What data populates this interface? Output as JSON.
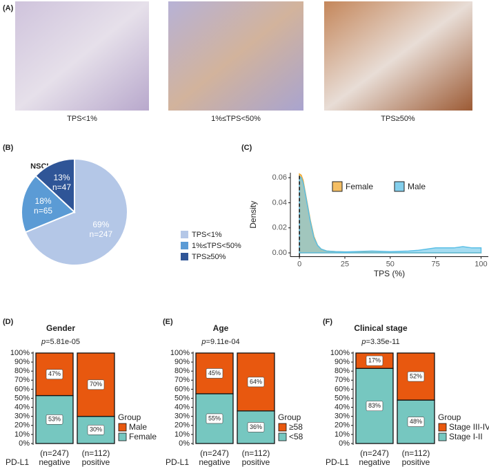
{
  "panel_labels": [
    "(A)",
    "(B)",
    "(C)",
    "(D)",
    "(E)",
    "(F)"
  ],
  "figure_a": {
    "captions": [
      "TPS<1%",
      "1%≤TPS<50%",
      "TPS≥50%"
    ]
  },
  "chart_data": [
    {
      "type": "pie",
      "title": "NSCLC AD patients",
      "categories": [
        "TPS<1%",
        "1%≤TPS<50%",
        "TPS≥50%"
      ],
      "values": [
        247,
        65,
        47
      ],
      "value_labels": [
        "n=247",
        "n=65",
        "n=47"
      ],
      "percent_labels": [
        "69%",
        "18%",
        "13%"
      ],
      "colors": [
        "#b4c7e7",
        "#5b9bd5",
        "#2f5597"
      ]
    },
    {
      "type": "density",
      "xlabel": "TPS (%)",
      "ylabel": "Density",
      "x": [
        0,
        1,
        2,
        3,
        4,
        5,
        6,
        8,
        10,
        12,
        15,
        20,
        25,
        30,
        40,
        50,
        60,
        65,
        70,
        75,
        80,
        85,
        90,
        95,
        100
      ],
      "series": [
        {
          "name": "Female",
          "color": "#f0a830",
          "values": [
            0.063,
            0.062,
            0.058,
            0.05,
            0.042,
            0.034,
            0.026,
            0.013,
            0.006,
            0.003,
            0.0015,
            0.001,
            0.0008,
            0.0006,
            0.0004,
            0.0002,
            0.0001,
            0.0001,
            0.0001,
            0.0001,
            0.0001,
            0.0001,
            0.0001,
            0.0001,
            0.0001
          ]
        },
        {
          "name": "Male",
          "color": "#5bbfe6",
          "values": [
            0.061,
            0.06,
            0.056,
            0.049,
            0.041,
            0.033,
            0.025,
            0.012,
            0.006,
            0.003,
            0.0015,
            0.001,
            0.0008,
            0.001,
            0.0015,
            0.001,
            0.0015,
            0.002,
            0.003,
            0.004,
            0.004,
            0.004,
            0.005,
            0.004,
            0.004
          ]
        }
      ],
      "vline": 0,
      "xlim": [
        -5,
        104
      ],
      "xticks": [
        0,
        25,
        50,
        75,
        100
      ],
      "ylim": [
        -0.003,
        0.064
      ],
      "yticks": [
        {
          "value": 0,
          "label": "0.00"
        },
        {
          "value": 0.02,
          "label": "0.02"
        },
        {
          "value": 0.04,
          "label": "0.04"
        },
        {
          "value": 0.06,
          "label": "0.06"
        }
      ]
    },
    {
      "type": "stacked_bar",
      "title": "Gender",
      "subtitle": "p=5.81e-05",
      "categories": [
        "(n=247)",
        "(n=112)"
      ],
      "category_sublabels": [
        "negative",
        "positive"
      ],
      "x_title": "PD-L1",
      "legend_title": "Group",
      "series": [
        {
          "name": "Female",
          "color": "#76c7c0",
          "values": [
            53,
            30
          ],
          "value_labels": [
            "53%",
            "30%"
          ]
        },
        {
          "name": "Male",
          "color": "#e8580f",
          "values": [
            47,
            70
          ],
          "value_labels": [
            "47%",
            "70%"
          ]
        }
      ],
      "ylim": [
        0,
        100
      ],
      "yticks": [
        {
          "value": 0,
          "label": "0%"
        },
        {
          "value": 10,
          "label": "10%"
        },
        {
          "value": 20,
          "label": "20%"
        },
        {
          "value": 30,
          "label": "30%"
        },
        {
          "value": 40,
          "label": "40%"
        },
        {
          "value": 50,
          "label": "50%"
        },
        {
          "value": 60,
          "label": "60%"
        },
        {
          "value": 70,
          "label": "70%"
        },
        {
          "value": 80,
          "label": "80%"
        },
        {
          "value": 90,
          "label": "90%"
        },
        {
          "value": 100,
          "label": "100%"
        }
      ]
    },
    {
      "type": "stacked_bar",
      "title": "Age",
      "subtitle": "p=9.11e-04",
      "categories": [
        "(n=247)",
        "(n=112)"
      ],
      "category_sublabels": [
        "negative",
        "positive"
      ],
      "x_title": "PD-L1",
      "legend_title": "Group",
      "series": [
        {
          "name": "<58",
          "color": "#76c7c0",
          "values": [
            55,
            36
          ],
          "value_labels": [
            "55%",
            "36%"
          ]
        },
        {
          "name": "≥58",
          "color": "#e8580f",
          "values": [
            45,
            64
          ],
          "value_labels": [
            "45%",
            "64%"
          ]
        }
      ],
      "ylim": [
        0,
        100
      ],
      "yticks": [
        {
          "value": 0,
          "label": "0%"
        },
        {
          "value": 10,
          "label": "10%"
        },
        {
          "value": 20,
          "label": "20%"
        },
        {
          "value": 30,
          "label": "30%"
        },
        {
          "value": 40,
          "label": "40%"
        },
        {
          "value": 50,
          "label": "50%"
        },
        {
          "value": 60,
          "label": "60%"
        },
        {
          "value": 70,
          "label": "70%"
        },
        {
          "value": 80,
          "label": "80%"
        },
        {
          "value": 90,
          "label": "90%"
        },
        {
          "value": 100,
          "label": "100%"
        }
      ]
    },
    {
      "type": "stacked_bar",
      "title": "Clinical stage",
      "subtitle": "p=3.35e-11",
      "categories": [
        "(n=247)",
        "(n=112)"
      ],
      "category_sublabels": [
        "negative",
        "positive"
      ],
      "x_title": "PD-L1",
      "legend_title": "Group",
      "series": [
        {
          "name": "Stage I-II",
          "color": "#76c7c0",
          "values": [
            83,
            48
          ],
          "value_labels": [
            "83%",
            "48%"
          ]
        },
        {
          "name": "Stage III-IV",
          "color": "#e8580f",
          "values": [
            17,
            52
          ],
          "value_labels": [
            "17%",
            "52%"
          ]
        }
      ],
      "ylim": [
        0,
        100
      ],
      "yticks": [
        {
          "value": 0,
          "label": "0%"
        },
        {
          "value": 10,
          "label": "10%"
        },
        {
          "value": 20,
          "label": "20%"
        },
        {
          "value": 30,
          "label": "30%"
        },
        {
          "value": 40,
          "label": "40%"
        },
        {
          "value": 50,
          "label": "50%"
        },
        {
          "value": 60,
          "label": "60%"
        },
        {
          "value": 70,
          "label": "70%"
        },
        {
          "value": 80,
          "label": "80%"
        },
        {
          "value": 90,
          "label": "90%"
        },
        {
          "value": 100,
          "label": "100%"
        }
      ]
    }
  ]
}
